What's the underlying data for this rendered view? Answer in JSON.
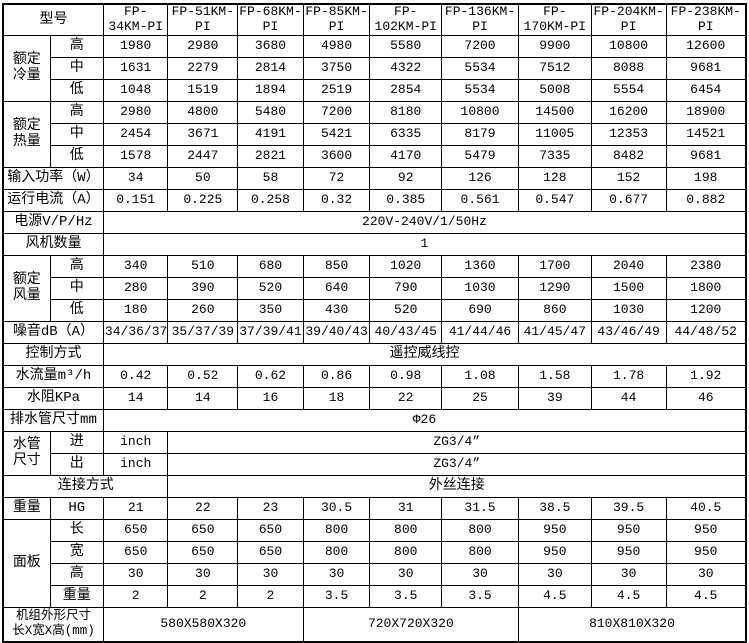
{
  "page": {
    "background": "#ffffff",
    "border_color": "#000000",
    "text_color": "#000000"
  },
  "chart_data": {
    "type": "table",
    "title": "风机盘管规格参数表",
    "corner_label": "型号",
    "models": [
      "FP-34KM-PI",
      "FP-51KM-PI",
      "FP-68KM-PI",
      "FP-85KM-PI",
      "FP-102KM-PI",
      "FP-136KM-PI",
      "FP-170KM-PI",
      "FP-204KM-PI",
      "FP-238KM-PI"
    ],
    "rows": [
      [
        {
          "t": "型号",
          "cs": 2,
          "c": "lab",
          "n": "corner-label"
        },
        {
          "t": "FP-34KM-PI",
          "c": "hdr",
          "n": "model-header"
        },
        {
          "t": "FP-51KM-PI",
          "c": "hdr",
          "n": "model-header"
        },
        {
          "t": "FP-68KM-PI",
          "c": "hdr",
          "n": "model-header"
        },
        {
          "t": "FP-85KM-PI",
          "c": "hdr",
          "n": "model-header"
        },
        {
          "t": "FP-102KM-PI",
          "c": "hdr",
          "n": "model-header"
        },
        {
          "t": "FP-136KM-PI",
          "c": "hdr",
          "n": "model-header"
        },
        {
          "t": "FP-170KM-PI",
          "c": "hdr",
          "n": "model-header"
        },
        {
          "t": "FP-204KM-PI",
          "c": "hdr",
          "n": "model-header"
        },
        {
          "t": "FP-238KM-PI",
          "c": "hdr",
          "n": "model-header"
        }
      ],
      [
        {
          "t": "额定\n冷量",
          "rs": 3,
          "c": "lab",
          "n": "row-label-cooling"
        },
        {
          "t": "高",
          "c": "sub",
          "n": "row-sublabel"
        },
        {
          "t": "1980"
        },
        {
          "t": "2980"
        },
        {
          "t": "3680"
        },
        {
          "t": "4980"
        },
        {
          "t": "5580"
        },
        {
          "t": "7200"
        },
        {
          "t": "9900"
        },
        {
          "t": "10800"
        },
        {
          "t": "12600"
        }
      ],
      [
        {
          "t": "中",
          "c": "sub",
          "n": "row-sublabel"
        },
        {
          "t": "1631"
        },
        {
          "t": "2279"
        },
        {
          "t": "2814"
        },
        {
          "t": "3750"
        },
        {
          "t": "4322"
        },
        {
          "t": "5534"
        },
        {
          "t": "7512"
        },
        {
          "t": "8088"
        },
        {
          "t": "9681"
        }
      ],
      [
        {
          "t": "低",
          "c": "sub",
          "n": "row-sublabel"
        },
        {
          "t": "1048"
        },
        {
          "t": "1519"
        },
        {
          "t": "1894"
        },
        {
          "t": "2519"
        },
        {
          "t": "2854"
        },
        {
          "t": "5534"
        },
        {
          "t": "5008"
        },
        {
          "t": "5554"
        },
        {
          "t": "6454"
        }
      ],
      [
        {
          "t": "额定\n热量",
          "rs": 3,
          "c": "lab",
          "n": "row-label-heating"
        },
        {
          "t": "高",
          "c": "sub",
          "n": "row-sublabel"
        },
        {
          "t": "2980"
        },
        {
          "t": "4800"
        },
        {
          "t": "5480"
        },
        {
          "t": "7200"
        },
        {
          "t": "8180"
        },
        {
          "t": "10800"
        },
        {
          "t": "14500"
        },
        {
          "t": "16200"
        },
        {
          "t": "18900"
        }
      ],
      [
        {
          "t": "中",
          "c": "sub",
          "n": "row-sublabel"
        },
        {
          "t": "2454"
        },
        {
          "t": "3671"
        },
        {
          "t": "4191"
        },
        {
          "t": "5421"
        },
        {
          "t": "6335"
        },
        {
          "t": "8179"
        },
        {
          "t": "11005"
        },
        {
          "t": "12353"
        },
        {
          "t": "14521"
        }
      ],
      [
        {
          "t": "低",
          "c": "sub",
          "n": "row-sublabel"
        },
        {
          "t": "1578"
        },
        {
          "t": "2447"
        },
        {
          "t": "2821"
        },
        {
          "t": "3600"
        },
        {
          "t": "4170"
        },
        {
          "t": "5479"
        },
        {
          "t": "7335"
        },
        {
          "t": "8482"
        },
        {
          "t": "9681"
        }
      ],
      [
        {
          "t": "输入功率（W）",
          "cs": 2,
          "c": "lab",
          "n": "row-label-power"
        },
        {
          "t": "34"
        },
        {
          "t": "50"
        },
        {
          "t": "58"
        },
        {
          "t": "72"
        },
        {
          "t": "92"
        },
        {
          "t": "126"
        },
        {
          "t": "128"
        },
        {
          "t": "152"
        },
        {
          "t": "198"
        }
      ],
      [
        {
          "t": "运行电流（A）",
          "cs": 2,
          "c": "lab",
          "n": "row-label-current"
        },
        {
          "t": "0.151"
        },
        {
          "t": "0.225"
        },
        {
          "t": "0.258"
        },
        {
          "t": "0.32"
        },
        {
          "t": "0.385"
        },
        {
          "t": "0.561"
        },
        {
          "t": "0.547"
        },
        {
          "t": "0.677"
        },
        {
          "t": "0.882"
        }
      ],
      [
        {
          "t": "电源V/P/Hz",
          "cs": 2,
          "c": "lab",
          "n": "row-label-powersupply"
        },
        {
          "t": "220V-240V/1/50Hz",
          "cs": 9,
          "n": "merged-value"
        }
      ],
      [
        {
          "t": "风机数量",
          "cs": 2,
          "c": "lab",
          "n": "row-label-fancount"
        },
        {
          "t": "1",
          "cs": 9,
          "n": "merged-value"
        }
      ],
      [
        {
          "t": "额定\n风量",
          "rs": 3,
          "c": "lab",
          "n": "row-label-airflow"
        },
        {
          "t": "高",
          "c": "sub",
          "n": "row-sublabel"
        },
        {
          "t": "340"
        },
        {
          "t": "510"
        },
        {
          "t": "680"
        },
        {
          "t": "850"
        },
        {
          "t": "1020"
        },
        {
          "t": "1360"
        },
        {
          "t": "1700"
        },
        {
          "t": "2040"
        },
        {
          "t": "2380"
        }
      ],
      [
        {
          "t": "中",
          "c": "sub",
          "n": "row-sublabel"
        },
        {
          "t": "280"
        },
        {
          "t": "390"
        },
        {
          "t": "520"
        },
        {
          "t": "640"
        },
        {
          "t": "790"
        },
        {
          "t": "1030"
        },
        {
          "t": "1290"
        },
        {
          "t": "1500"
        },
        {
          "t": "1800"
        }
      ],
      [
        {
          "t": "低",
          "c": "sub",
          "n": "row-sublabel"
        },
        {
          "t": "180"
        },
        {
          "t": "260"
        },
        {
          "t": "350"
        },
        {
          "t": "430"
        },
        {
          "t": "520"
        },
        {
          "t": "690"
        },
        {
          "t": "860"
        },
        {
          "t": "1030"
        },
        {
          "t": "1200"
        }
      ],
      [
        {
          "t": "噪音dB（A）",
          "cs": 2,
          "c": "lab",
          "n": "row-label-noise"
        },
        {
          "t": "34/36/37"
        },
        {
          "t": "35/37/39"
        },
        {
          "t": "37/39/41"
        },
        {
          "t": "39/40/43"
        },
        {
          "t": "40/43/45"
        },
        {
          "t": "41/44/46"
        },
        {
          "t": "41/45/47"
        },
        {
          "t": "43/46/49"
        },
        {
          "t": "44/48/52"
        }
      ],
      [
        {
          "t": "控制方式",
          "cs": 2,
          "c": "lab",
          "n": "row-label-control"
        },
        {
          "t": "遥控威线控",
          "cs": 9,
          "c": "lab",
          "n": "merged-value"
        }
      ],
      [
        {
          "t": "水流量m³/h",
          "cs": 2,
          "c": "lab",
          "n": "row-label-waterflow"
        },
        {
          "t": "0.42"
        },
        {
          "t": "0.52"
        },
        {
          "t": "0.62"
        },
        {
          "t": "0.86"
        },
        {
          "t": "0.98"
        },
        {
          "t": "1.08"
        },
        {
          "t": "1.58"
        },
        {
          "t": "1.78"
        },
        {
          "t": "1.92"
        }
      ],
      [
        {
          "t": "水阻KPa",
          "cs": 2,
          "c": "lab",
          "n": "row-label-waterresistance"
        },
        {
          "t": "14"
        },
        {
          "t": "14"
        },
        {
          "t": "16"
        },
        {
          "t": "18"
        },
        {
          "t": "22"
        },
        {
          "t": "25"
        },
        {
          "t": "39"
        },
        {
          "t": "44"
        },
        {
          "t": "46"
        }
      ],
      [
        {
          "t": "排水管尺寸mm",
          "cs": 2,
          "c": "lab",
          "n": "row-label-drainpipe"
        },
        {
          "t": "Φ26",
          "cs": 9,
          "n": "merged-value"
        }
      ],
      [
        {
          "t": "水管\n尺寸",
          "rs": 2,
          "c": "lab",
          "n": "row-label-pipesize"
        },
        {
          "t": "进",
          "c": "sub",
          "n": "row-sublabel"
        },
        {
          "t": "inch"
        },
        {
          "t": "ZG3/4”",
          "cs": 8,
          "n": "merged-value"
        }
      ],
      [
        {
          "t": "出",
          "c": "sub",
          "n": "row-sublabel"
        },
        {
          "t": "inch"
        },
        {
          "t": "ZG3/4”",
          "cs": 8,
          "n": "merged-value"
        }
      ],
      [
        {
          "t": "连接方式",
          "cs": 3,
          "c": "lab",
          "n": "row-label-connection"
        },
        {
          "t": "外丝连接",
          "cs": 8,
          "c": "lab",
          "n": "merged-value"
        }
      ],
      [
        {
          "t": "重量",
          "c": "lab",
          "n": "row-label-weight"
        },
        {
          "t": "HG",
          "c": "sub",
          "n": "row-sublabel"
        },
        {
          "t": "21"
        },
        {
          "t": "22"
        },
        {
          "t": "23"
        },
        {
          "t": "30.5"
        },
        {
          "t": "31"
        },
        {
          "t": "31.5"
        },
        {
          "t": "38.5"
        },
        {
          "t": "39.5"
        },
        {
          "t": "40.5"
        }
      ],
      [
        {
          "t": "面板",
          "rs": 4,
          "c": "lab",
          "n": "row-label-panel"
        },
        {
          "t": "长",
          "c": "sub",
          "n": "row-sublabel"
        },
        {
          "t": "650"
        },
        {
          "t": "650"
        },
        {
          "t": "650"
        },
        {
          "t": "800"
        },
        {
          "t": "800"
        },
        {
          "t": "800"
        },
        {
          "t": "950"
        },
        {
          "t": "950"
        },
        {
          "t": "950"
        }
      ],
      [
        {
          "t": "宽",
          "c": "sub",
          "n": "row-sublabel"
        },
        {
          "t": "650"
        },
        {
          "t": "650"
        },
        {
          "t": "650"
        },
        {
          "t": "800"
        },
        {
          "t": "800"
        },
        {
          "t": "800"
        },
        {
          "t": "950"
        },
        {
          "t": "950"
        },
        {
          "t": "950"
        }
      ],
      [
        {
          "t": "高",
          "c": "sub",
          "n": "row-sublabel"
        },
        {
          "t": "30"
        },
        {
          "t": "30"
        },
        {
          "t": "30"
        },
        {
          "t": "30"
        },
        {
          "t": "30"
        },
        {
          "t": "30"
        },
        {
          "t": "30"
        },
        {
          "t": "30"
        },
        {
          "t": "30"
        }
      ],
      [
        {
          "t": "重量",
          "c": "sub",
          "n": "row-sublabel"
        },
        {
          "t": "2"
        },
        {
          "t": "2"
        },
        {
          "t": "2"
        },
        {
          "t": "3.5"
        },
        {
          "t": "3.5"
        },
        {
          "t": "3.5"
        },
        {
          "t": "4.5"
        },
        {
          "t": "4.5"
        },
        {
          "t": "4.5"
        }
      ],
      [
        {
          "t": "机组外形尺寸\n长X宽X高(mm)",
          "cs": 2,
          "c": "small",
          "n": "row-label-unitdimensions",
          "tall": true
        },
        {
          "t": "580X580X320",
          "cs": 3,
          "n": "merged-value"
        },
        {
          "t": "720X720X320",
          "cs": 3,
          "n": "merged-value"
        },
        {
          "t": "810X810X320",
          "cs": 3,
          "n": "merged-value"
        }
      ]
    ]
  }
}
